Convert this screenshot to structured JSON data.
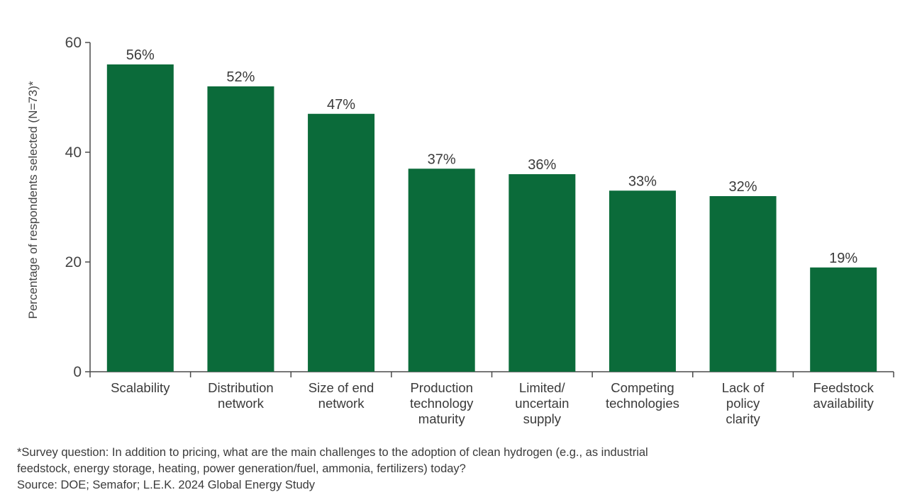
{
  "chart_data": {
    "type": "bar",
    "title": "",
    "xlabel": "",
    "ylabel": "Percentage of respondents selected (N=73)*",
    "ylim": [
      0,
      60
    ],
    "yticks": [
      0,
      20,
      40,
      60
    ],
    "grid": false,
    "bar_color": "#0b6b3a",
    "categories": [
      [
        "Scalability"
      ],
      [
        "Distribution",
        "network"
      ],
      [
        "Size of end",
        "network"
      ],
      [
        "Production",
        "technology",
        "maturity"
      ],
      [
        "Limited/",
        "uncertain",
        "supply"
      ],
      [
        "Competing",
        "technologies"
      ],
      [
        "Lack of",
        "policy",
        "clarity"
      ],
      [
        "Feedstock",
        "availability"
      ]
    ],
    "values": [
      56,
      52,
      47,
      37,
      36,
      33,
      32,
      19
    ],
    "value_labels": [
      "56%",
      "52%",
      "47%",
      "37%",
      "36%",
      "33%",
      "32%",
      "19%"
    ]
  },
  "footnote": {
    "line1": "*Survey question: In addition to pricing, what are the main challenges to the adoption of clean hydrogen (e.g., as industrial",
    "line2": "feedstock, energy storage, heating, power generation/fuel, ammonia, fertilizers) today?",
    "source": "Source: DOE; Semafor; L.E.K. 2024 Global Energy Study"
  }
}
